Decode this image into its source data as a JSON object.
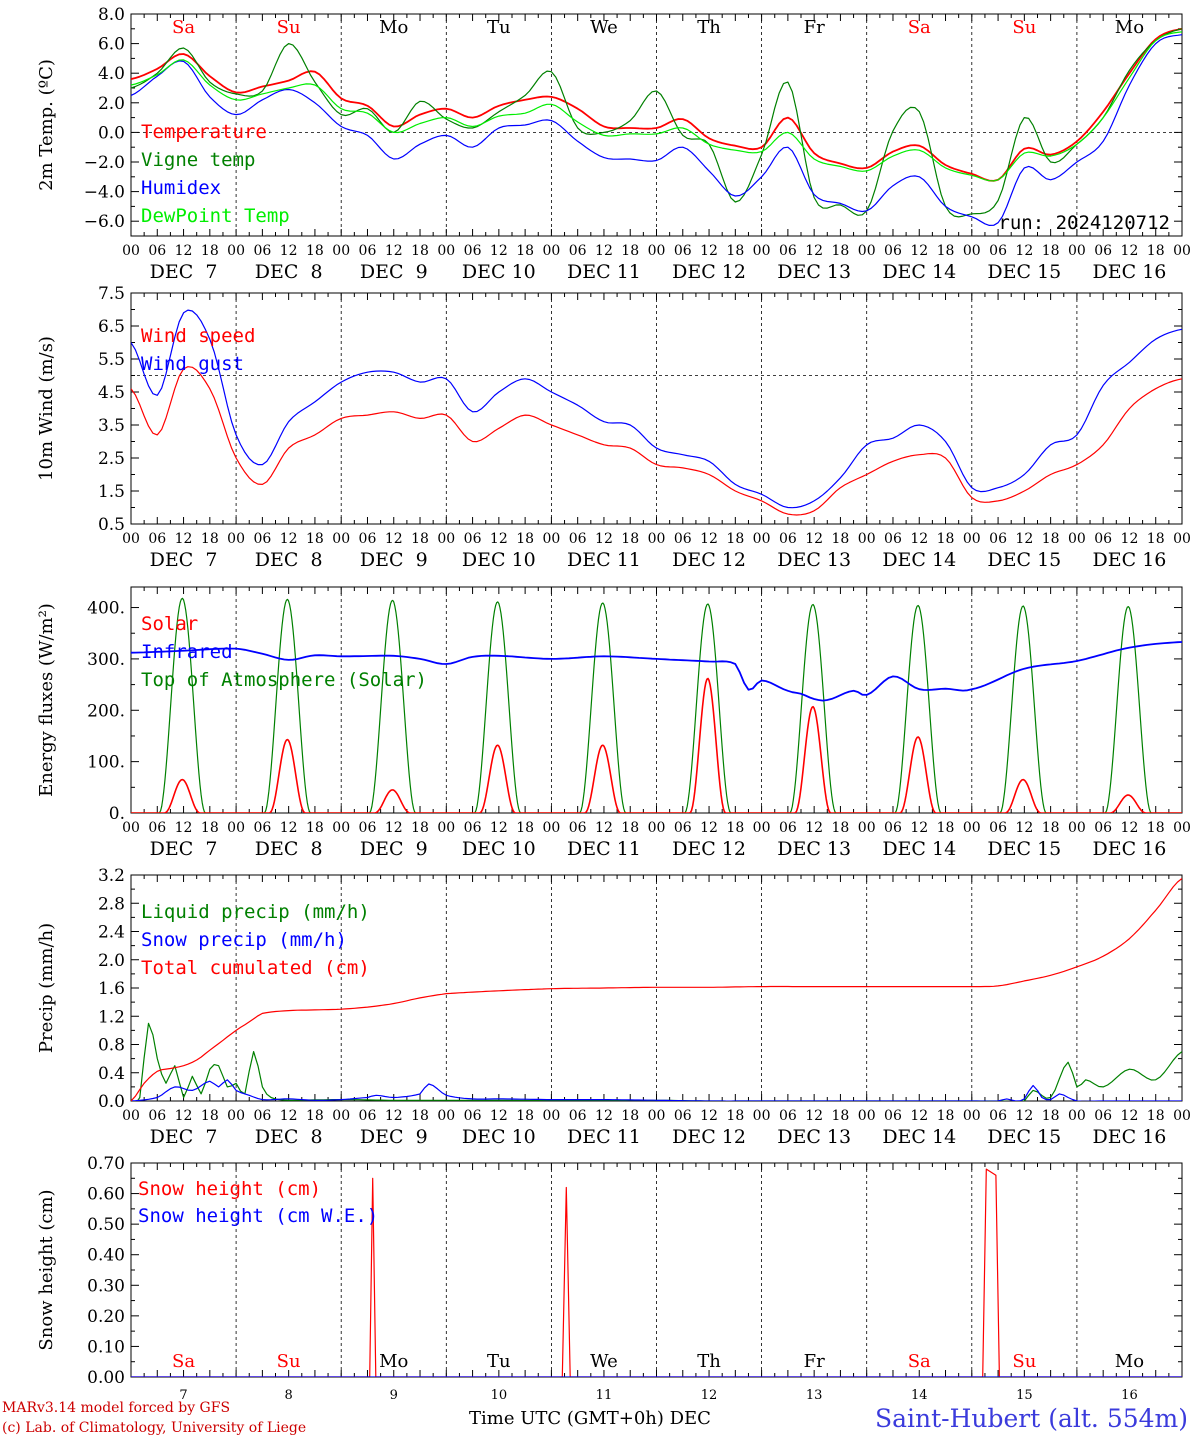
{
  "footer": {
    "credit_line1": "MARv3.14 model forced by GFS",
    "credit_line2": "(c) Lab. of Climatology, University of Liege",
    "xlabel": "Time UTC (GMT+0h) DEC",
    "station": "Saint-Hubert (alt. 554m)"
  },
  "days": {
    "weekday_labels": [
      "Sa",
      "Su",
      "Mo",
      "Tu",
      "We",
      "Th",
      "Fr",
      "Sa",
      "Su",
      "Mo"
    ],
    "weekend_flags": [
      true,
      true,
      false,
      false,
      false,
      false,
      false,
      true,
      true,
      false
    ],
    "date_labels": [
      "DEC  7",
      "DEC  8",
      "DEC  9",
      "DEC 10",
      "DEC 11",
      "DEC 12",
      "DEC 13",
      "DEC 14",
      "DEC 15",
      "DEC 16"
    ],
    "bottom_day_numbers": [
      "7",
      "8",
      "9",
      "10",
      "11",
      "12",
      "13",
      "14",
      "15",
      "16"
    ],
    "hour_ticks": [
      "00",
      "06",
      "12",
      "18"
    ],
    "final_tick": "00"
  },
  "colors": {
    "red": "#ff0000",
    "green": "#008000",
    "blue": "#0000ff",
    "lightgreen": "#00ee00",
    "station_blue": "#3b3bdc",
    "credit_red": "#cc0000"
  },
  "chart_data": [
    {
      "id": "temp",
      "type": "line",
      "ylabel": "2m Temp. (ºC)",
      "ylim": [
        -7.0,
        8.0
      ],
      "yticks": [
        -6.0,
        -4.0,
        -2.0,
        0.0,
        2.0,
        4.0,
        6.0,
        8.0
      ],
      "ytick_labels": [
        "−6.0",
        "−4.0",
        "−2.0",
        "0.0",
        "2.0",
        "4.0",
        "6.0",
        "8.0"
      ],
      "ref_line": 0.0,
      "run_label": "run: 2024120712",
      "x_hours": [
        0,
        6,
        12,
        18,
        24,
        30,
        36,
        42,
        48,
        54,
        60,
        66,
        72,
        78,
        84,
        90,
        96,
        102,
        108,
        114,
        120,
        126,
        132,
        138,
        144,
        150,
        156,
        162,
        168,
        174,
        180,
        186,
        192,
        198,
        204,
        210,
        216,
        222,
        228,
        234,
        240
      ],
      "series": [
        {
          "name": "Temperature",
          "color": "#ff0000",
          "values": [
            3.6,
            4.3,
            5.3,
            3.8,
            2.7,
            3.1,
            3.5,
            4.1,
            2.3,
            1.8,
            0.4,
            1.2,
            1.6,
            1.0,
            1.8,
            2.2,
            2.4,
            1.6,
            0.4,
            0.3,
            0.3,
            0.9,
            -0.4,
            -0.9,
            -1.0,
            1.0,
            -1.4,
            -2.1,
            -2.4,
            -1.3,
            -0.9,
            -2.2,
            -2.8,
            -3.2,
            -1.1,
            -1.5,
            -0.6,
            1.4,
            4.0,
            6.3,
            7.0
          ]
        },
        {
          "name": "Vigne temp",
          "color": "#008000",
          "values": [
            3.0,
            4.0,
            5.7,
            3.4,
            2.6,
            2.8,
            6.0,
            3.4,
            1.2,
            1.6,
            0.0,
            2.1,
            0.9,
            0.3,
            1.4,
            2.5,
            4.1,
            0.3,
            0.0,
            0.8,
            2.8,
            -0.2,
            -0.8,
            -4.7,
            -1.5,
            3.4,
            -4.4,
            -4.9,
            -5.3,
            0.1,
            1.4,
            -5.0,
            -5.5,
            -4.6,
            1.0,
            -2.0,
            -0.8,
            1.0,
            4.2,
            6.2,
            7.0
          ]
        },
        {
          "name": "Humidex",
          "color": "#0000ff",
          "values": [
            2.5,
            3.8,
            4.8,
            2.4,
            1.2,
            2.2,
            2.9,
            2.0,
            0.4,
            -0.2,
            -1.8,
            -0.8,
            -0.2,
            -1.0,
            0.3,
            0.5,
            0.8,
            -0.6,
            -1.7,
            -1.8,
            -1.9,
            -1.0,
            -2.6,
            -4.3,
            -3.0,
            -1.0,
            -4.2,
            -4.8,
            -5.3,
            -3.6,
            -3.0,
            -5.0,
            -5.7,
            -6.1,
            -2.4,
            -3.2,
            -2.0,
            -0.6,
            3.2,
            6.0,
            6.6
          ]
        },
        {
          "name": "DewPoint Temp",
          "color": "#00ee00",
          "values": [
            3.2,
            3.9,
            4.9,
            3.2,
            2.2,
            2.6,
            3.0,
            3.2,
            1.6,
            1.3,
            0.0,
            0.6,
            1.0,
            0.4,
            1.1,
            1.3,
            1.9,
            0.7,
            -0.2,
            -0.1,
            -0.1,
            0.3,
            -0.8,
            -1.2,
            -1.3,
            0.0,
            -1.8,
            -2.3,
            -2.6,
            -1.6,
            -1.2,
            -2.4,
            -2.9,
            -3.2,
            -1.4,
            -1.6,
            -0.8,
            1.0,
            3.7,
            6.2,
            6.8
          ]
        }
      ]
    },
    {
      "id": "wind",
      "type": "line",
      "ylabel": "10m Wind (m/s)",
      "ylim": [
        0.5,
        7.5
      ],
      "yticks": [
        0.5,
        1.5,
        2.5,
        3.5,
        4.5,
        5.5,
        6.5,
        7.5
      ],
      "ytick_labels": [
        "0.5",
        "1.5",
        "2.5",
        "3.5",
        "4.5",
        "5.5",
        "6.5",
        "7.5"
      ],
      "ref_line": 5.0,
      "x_hours": [
        0,
        6,
        12,
        18,
        24,
        30,
        36,
        42,
        48,
        54,
        60,
        66,
        72,
        78,
        84,
        90,
        96,
        102,
        108,
        114,
        120,
        126,
        132,
        138,
        144,
        150,
        156,
        162,
        168,
        174,
        180,
        186,
        192,
        198,
        204,
        210,
        216,
        222,
        228,
        234,
        240
      ],
      "series": [
        {
          "name": "Wind speed",
          "color": "#ff0000",
          "values": [
            4.6,
            3.2,
            5.2,
            4.6,
            2.5,
            1.7,
            2.8,
            3.2,
            3.7,
            3.8,
            3.9,
            3.7,
            3.8,
            3.0,
            3.4,
            3.8,
            3.5,
            3.2,
            2.9,
            2.8,
            2.3,
            2.2,
            2.0,
            1.5,
            1.2,
            0.8,
            0.9,
            1.6,
            2.0,
            2.4,
            2.6,
            2.5,
            1.3,
            1.2,
            1.5,
            2.0,
            2.3,
            2.9,
            4.0,
            4.6,
            4.9
          ]
        },
        {
          "name": "Wind gust",
          "color": "#0000ff",
          "values": [
            6.0,
            4.4,
            6.9,
            6.1,
            3.2,
            2.3,
            3.6,
            4.2,
            4.8,
            5.1,
            5.1,
            4.8,
            4.9,
            3.9,
            4.5,
            4.9,
            4.5,
            4.1,
            3.6,
            3.5,
            2.8,
            2.6,
            2.4,
            1.7,
            1.4,
            1.0,
            1.2,
            1.9,
            2.9,
            3.1,
            3.5,
            3.0,
            1.6,
            1.6,
            2.0,
            2.9,
            3.2,
            4.7,
            5.4,
            6.1,
            6.4
          ]
        }
      ]
    },
    {
      "id": "energy",
      "type": "line",
      "ylabel": "Energy fluxes (W/m²)",
      "ylim": [
        0.0,
        440.0
      ],
      "yticks": [
        0,
        100,
        200,
        300,
        400
      ],
      "ytick_labels": [
        "0.",
        "100.",
        "200.",
        "300.",
        "400."
      ],
      "peak_hour": 11.7,
      "toa_halfwidth_hours": 5.3,
      "toa_peaks": [
        418,
        416,
        414,
        411,
        409,
        407,
        406,
        404,
        403,
        402
      ],
      "solar_peaks": [
        65,
        143,
        45,
        132,
        132,
        262,
        207,
        148,
        65,
        35
      ],
      "infrared_hours": [
        0,
        12,
        24,
        30,
        36,
        42,
        48,
        60,
        66,
        72,
        78,
        84,
        96,
        108,
        120,
        132,
        138,
        141,
        144,
        150,
        153,
        156,
        159,
        165,
        168,
        174,
        180,
        186,
        192,
        204,
        216,
        228,
        240
      ],
      "infrared_values": [
        312,
        316,
        320,
        310,
        298,
        307,
        305,
        306,
        300,
        290,
        304,
        306,
        300,
        305,
        300,
        295,
        290,
        240,
        258,
        238,
        232,
        222,
        220,
        238,
        230,
        266,
        241,
        242,
        241,
        281,
        296,
        322,
        333
      ],
      "series": [
        {
          "name": "Solar",
          "color": "#ff0000"
        },
        {
          "name": "Infrared",
          "color": "#0000ff"
        },
        {
          "name": "Top of Atmosphere (Solar)",
          "color": "#008000"
        }
      ]
    },
    {
      "id": "precip",
      "type": "line",
      "ylabel": "Precip (mm/h)",
      "ylim": [
        0.0,
        3.2
      ],
      "yticks": [
        0.0,
        0.4,
        0.8,
        1.2,
        1.6,
        2.0,
        2.4,
        2.8,
        3.2
      ],
      "ytick_labels": [
        "0.0",
        "0.4",
        "0.8",
        "1.2",
        "1.6",
        "2.0",
        "2.4",
        "2.8",
        "3.2"
      ],
      "series": [
        {
          "name": "Liquid precip (mm/h)",
          "color": "#008000",
          "x_hours": [
            0,
            2,
            4,
            6,
            8,
            10,
            12,
            14,
            16,
            18,
            20,
            22,
            24,
            26,
            28,
            30,
            32,
            34,
            36,
            48,
            60,
            72,
            84,
            96,
            108,
            120,
            132,
            144,
            156,
            168,
            180,
            192,
            198,
            204,
            206,
            210,
            214,
            216,
            218,
            222,
            228,
            234,
            240
          ],
          "values": [
            0.0,
            0.05,
            1.1,
            0.6,
            0.25,
            0.5,
            0.05,
            0.35,
            0.1,
            0.45,
            0.5,
            0.2,
            0.25,
            0.1,
            0.7,
            0.2,
            0.05,
            0.02,
            0.01,
            0.02,
            0.01,
            0.01,
            0.01,
            0.01,
            0.01,
            0.01,
            0.0,
            0.0,
            0.0,
            0.0,
            0.0,
            0.0,
            0.0,
            0.0,
            0.15,
            0.05,
            0.55,
            0.2,
            0.3,
            0.2,
            0.45,
            0.3,
            0.7
          ]
        },
        {
          "name": "Snow precip (mm/h)",
          "color": "#0000ff",
          "x_hours": [
            0,
            6,
            10,
            14,
            18,
            20,
            22,
            24,
            26,
            30,
            36,
            42,
            48,
            54,
            56,
            60,
            66,
            68,
            72,
            78,
            84,
            96,
            108,
            120,
            132,
            144,
            156,
            168,
            180,
            192,
            198,
            200,
            202,
            204,
            206,
            208,
            210,
            212,
            214,
            216,
            222,
            240
          ],
          "values": [
            0.0,
            0.05,
            0.2,
            0.15,
            0.28,
            0.2,
            0.3,
            0.15,
            0.1,
            0.02,
            0.03,
            0.01,
            0.02,
            0.05,
            0.08,
            0.05,
            0.1,
            0.24,
            0.08,
            0.03,
            0.03,
            0.02,
            0.02,
            0.01,
            0.0,
            0.0,
            0.0,
            0.0,
            0.0,
            0.0,
            0.0,
            0.03,
            0.0,
            0.03,
            0.22,
            0.05,
            0.02,
            0.1,
            0.05,
            0.0,
            0.0,
            0.0
          ]
        },
        {
          "name": "Total cumulated (cm)",
          "color": "#ff0000",
          "x_hours": [
            0,
            3,
            6,
            9,
            12,
            15,
            18,
            21,
            24,
            27,
            30,
            36,
            42,
            48,
            54,
            60,
            66,
            72,
            84,
            96,
            108,
            120,
            132,
            144,
            156,
            168,
            180,
            192,
            198,
            204,
            210,
            216,
            222,
            228,
            234,
            240
          ],
          "values": [
            0.0,
            0.25,
            0.42,
            0.46,
            0.5,
            0.58,
            0.72,
            0.86,
            1.0,
            1.12,
            1.24,
            1.28,
            1.29,
            1.3,
            1.33,
            1.38,
            1.46,
            1.52,
            1.56,
            1.59,
            1.6,
            1.61,
            1.61,
            1.62,
            1.62,
            1.62,
            1.62,
            1.62,
            1.63,
            1.7,
            1.78,
            1.9,
            2.05,
            2.3,
            2.7,
            3.15
          ]
        }
      ]
    },
    {
      "id": "snow",
      "type": "line",
      "ylabel": "Snow height (cm)",
      "ylim": [
        0.0,
        0.7
      ],
      "yticks": [
        0.0,
        0.1,
        0.2,
        0.3,
        0.4,
        0.5,
        0.6,
        0.7
      ],
      "ytick_labels": [
        "0.00",
        "0.10",
        "0.20",
        "0.30",
        "0.40",
        "0.50",
        "0.60",
        "0.70"
      ],
      "series": [
        {
          "name": "Snow height (cm)",
          "color": "#ff0000",
          "x_hours": [
            0,
            54.5,
            55.2,
            55.9,
            98.5,
            99.4,
            100.3,
            194.5,
            195.3,
            197.5,
            198.3,
            240
          ],
          "values": [
            0.0,
            0.0,
            0.65,
            0.0,
            0.0,
            0.62,
            0.0,
            0.0,
            0.68,
            0.66,
            0.0,
            0.0
          ]
        },
        {
          "name": "Snow height (cm W.E.)",
          "color": "#0000ff",
          "x_hours": [
            0,
            240
          ],
          "values": [
            0.0,
            0.0
          ]
        }
      ]
    }
  ]
}
